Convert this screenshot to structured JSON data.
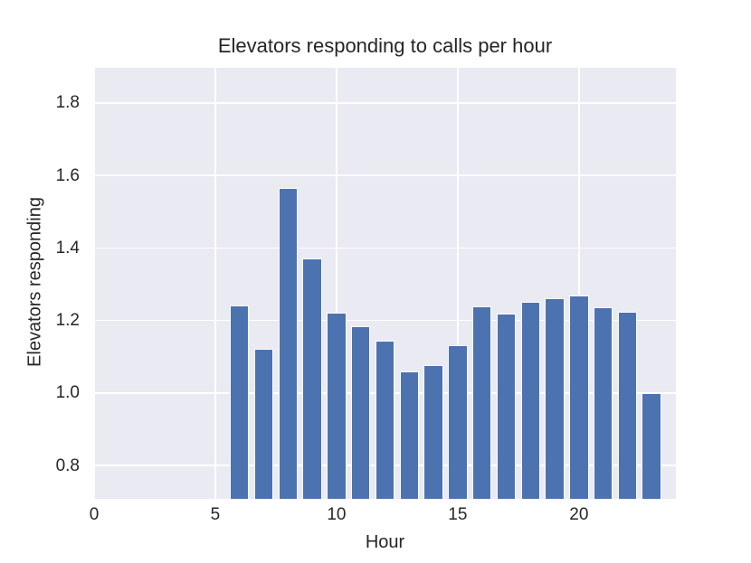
{
  "figure": {
    "title": "Elevators responding to calls per hour",
    "xlabel": "Hour",
    "ylabel": "Elevators responding"
  },
  "chart_data": {
    "type": "bar",
    "title": "Elevators responding to calls per hour",
    "xlabel": "Hour",
    "ylabel": "Elevators responding",
    "categories": [
      6,
      7,
      8,
      9,
      10,
      11,
      12,
      13,
      14,
      15,
      16,
      17,
      18,
      19,
      20,
      21,
      22,
      23
    ],
    "values": [
      1.242,
      1.121,
      1.566,
      1.371,
      1.221,
      1.184,
      1.144,
      1.059,
      1.078,
      1.132,
      1.238,
      1.218,
      1.251,
      1.262,
      1.269,
      1.237,
      1.224,
      1.0
    ],
    "x_ticks": [
      0,
      5,
      10,
      15,
      20
    ],
    "x_tick_labels": [
      "0",
      "5",
      "10",
      "15",
      "20"
    ],
    "y_ticks": [
      0.8,
      1.0,
      1.2,
      1.4,
      1.6,
      1.8
    ],
    "y_tick_labels": [
      "0.8",
      "1.0",
      "1.2",
      "1.4",
      "1.6",
      "1.8"
    ],
    "xlim": [
      0,
      24
    ],
    "ylim": [
      0.708,
      1.897
    ],
    "bar_width_units": 0.8,
    "grid": true,
    "legend": false,
    "colors": {
      "bar_fill": "#4c72b0",
      "bar_edge": "#ffffff",
      "plot_background": "#eaeaf2",
      "gridline": "#ffffff",
      "text": "#262626",
      "figure_background": "#ffffff"
    }
  }
}
